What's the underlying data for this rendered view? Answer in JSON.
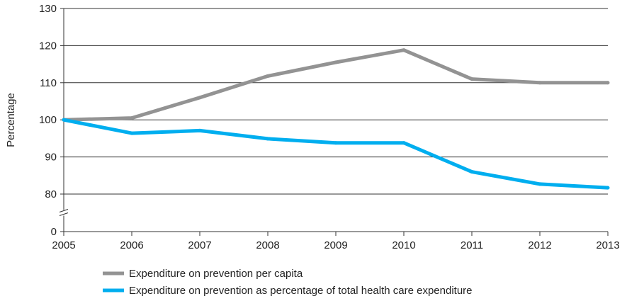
{
  "chart_data": {
    "type": "line",
    "title": "",
    "xlabel": "",
    "ylabel": "Percentage",
    "x": [
      2005,
      2006,
      2007,
      2008,
      2009,
      2010,
      2011,
      2012,
      2013
    ],
    "xlim": [
      2005,
      2013
    ],
    "ylim": [
      0,
      130
    ],
    "y_ticks": [
      0,
      80,
      90,
      100,
      110,
      120,
      130
    ],
    "y_axis_break": true,
    "grid": "horizontal",
    "legend_position": "bottom",
    "series": [
      {
        "name": "Expenditure on prevention per capita",
        "color": "#939393",
        "points": [
          [
            2005,
            100
          ],
          [
            2006,
            100.5
          ],
          [
            2007,
            106
          ],
          [
            2008,
            111.8
          ],
          [
            2009,
            115.5
          ],
          [
            2010,
            118.8
          ],
          [
            2011,
            111
          ],
          [
            2012,
            110
          ],
          [
            2013,
            110
          ]
        ]
      },
      {
        "name": "Expenditure on prevention as percentage of total health care expenditure",
        "color": "#00aeef",
        "points": [
          [
            2005,
            100
          ],
          [
            2006,
            96.4
          ],
          [
            2007,
            97.1
          ],
          [
            2008,
            94.9
          ],
          [
            2009,
            93.8
          ],
          [
            2010,
            93.8
          ],
          [
            2011,
            86
          ],
          [
            2012,
            82.7
          ],
          [
            2013,
            81.7
          ]
        ]
      }
    ]
  }
}
